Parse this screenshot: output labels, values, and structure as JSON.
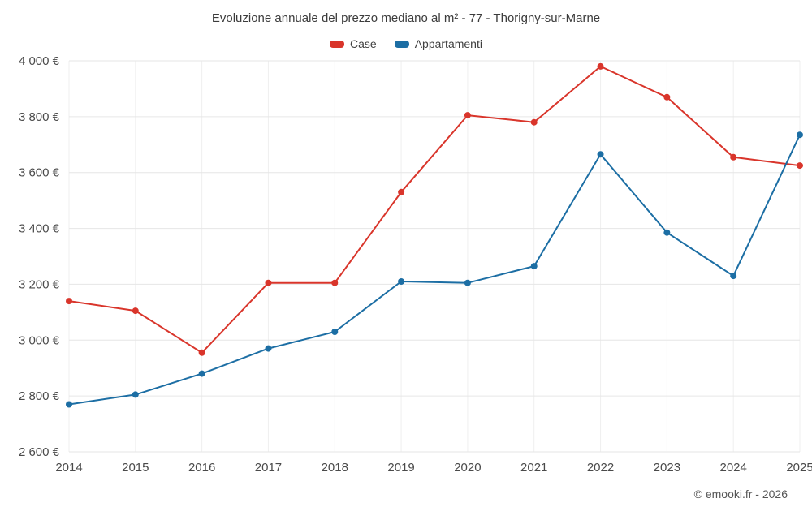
{
  "chart_data": {
    "type": "line",
    "title": "Evoluzione annuale del prezzo mediano al m² - 77 - Thorigny-sur-Marne",
    "x": [
      2014,
      2015,
      2016,
      2017,
      2018,
      2019,
      2020,
      2021,
      2022,
      2023,
      2024,
      2025
    ],
    "series": [
      {
        "name": "Case",
        "color": "#d9352b",
        "values": [
          3140,
          3105,
          2955,
          3205,
          3205,
          3530,
          3805,
          3780,
          3980,
          3870,
          3655,
          3625
        ]
      },
      {
        "name": "Appartamenti",
        "color": "#1c6ea4",
        "values": [
          2770,
          2805,
          2880,
          2970,
          3030,
          3210,
          3205,
          3265,
          3665,
          3385,
          3230,
          3735
        ]
      }
    ],
    "ylim": [
      2600,
      4000
    ],
    "yticks": [
      {
        "value": 2600,
        "label": "2 600 €"
      },
      {
        "value": 2800,
        "label": "2 800 €"
      },
      {
        "value": 3000,
        "label": "3 000 €"
      },
      {
        "value": 3200,
        "label": "3 200 €"
      },
      {
        "value": 3400,
        "label": "3 400 €"
      },
      {
        "value": 3600,
        "label": "3 600 €"
      },
      {
        "value": 3800,
        "label": "3 800 €"
      },
      {
        "value": 4000,
        "label": "4 000 €"
      }
    ],
    "grid": true,
    "legend_position": "top",
    "xlabel": "",
    "ylabel": "",
    "copyright": "© emooki.fr - 2026"
  },
  "style": {
    "grid_color": "#e6e6e6",
    "vgrid_color": "#efefef",
    "tick_color": "#4a4a4a"
  }
}
